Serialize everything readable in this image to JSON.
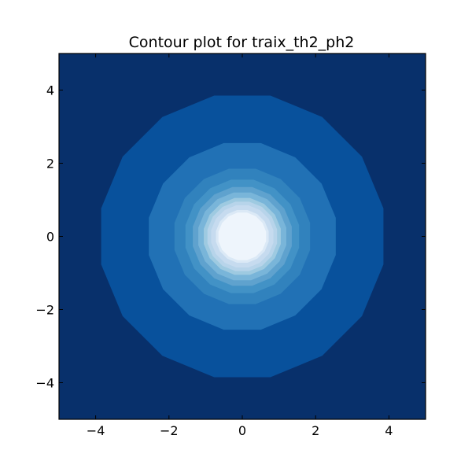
{
  "chart_data": {
    "type": "contour",
    "title": "Contour plot for traix_th2_ph2",
    "xlabel": "",
    "ylabel": "",
    "xlim": [
      -5,
      5
    ],
    "ylim": [
      -5,
      5
    ],
    "x_ticks": [
      -4,
      -2,
      0,
      2,
      4
    ],
    "y_ticks": [
      -4,
      -2,
      0,
      2,
      4
    ],
    "x_tick_labels": [
      "−4",
      "−2",
      "0",
      "2",
      "4"
    ],
    "y_tick_labels": [
      "−4",
      "−2",
      "0",
      "2",
      "4"
    ],
    "colormap": "Blues_r",
    "grid": false,
    "legend": "none",
    "background_color": "#08306b",
    "levels": [
      {
        "x_extent": 3.85,
        "y_extent": 3.85,
        "color": "#08519c"
      },
      {
        "x_extent": 2.55,
        "y_extent": 2.55,
        "color": "#2171b5"
      },
      {
        "x_extent": 1.85,
        "y_extent": 1.85,
        "color": "#3182bd"
      },
      {
        "x_extent": 1.55,
        "y_extent": 1.55,
        "color": "#4292c6"
      },
      {
        "x_extent": 1.35,
        "y_extent": 1.35,
        "color": "#5fa2ce"
      },
      {
        "x_extent": 1.2,
        "y_extent": 1.2,
        "color": "#79b5d9"
      },
      {
        "x_extent": 1.05,
        "y_extent": 1.05,
        "color": "#9ecae1"
      },
      {
        "x_extent": 0.95,
        "y_extent": 0.95,
        "color": "#b7d4ea"
      },
      {
        "x_extent": 0.85,
        "y_extent": 0.85,
        "color": "#c6dbef"
      },
      {
        "x_extent": 0.72,
        "y_extent": 0.72,
        "color": "#dbe9f6"
      },
      {
        "x_extent": 0.65,
        "y_extent": 0.65,
        "color": "#eef5fc"
      }
    ]
  }
}
